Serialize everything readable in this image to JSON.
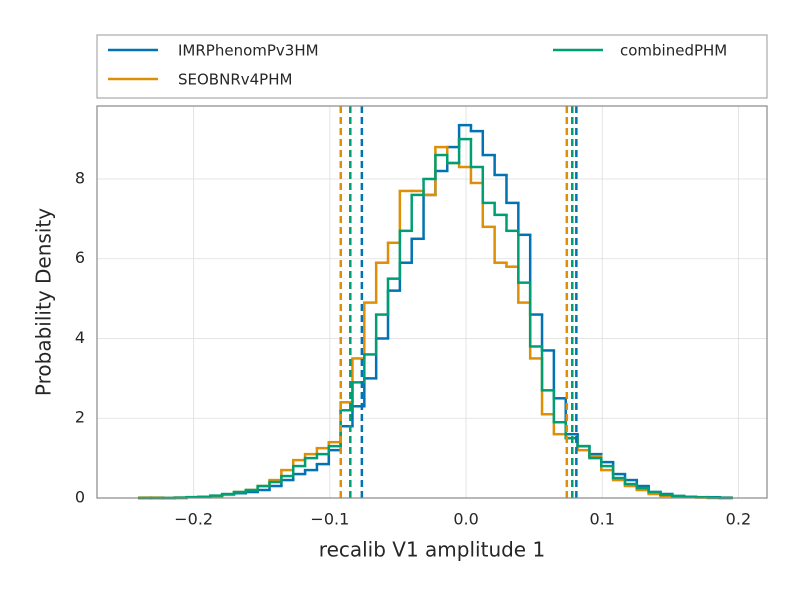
{
  "chart_data": {
    "type": "step-histogram",
    "xlabel": "recalib V1 amplitude 1",
    "ylabel": "Probability Density",
    "xlim": [
      -0.271,
      0.221
    ],
    "ylim": [
      0,
      9.83
    ],
    "xticks": [
      {
        "value": -0.2,
        "label": "−0.2"
      },
      {
        "value": -0.1,
        "label": "−0.1"
      },
      {
        "value": 0,
        "label": "0.0"
      },
      {
        "value": 0.1,
        "label": "0.1"
      },
      {
        "value": 0.2,
        "label": "0.2"
      }
    ],
    "yticks": [
      0,
      2,
      4,
      6,
      8
    ],
    "grid": true,
    "bins": [
      -0.24,
      -0.2313,
      -0.2226,
      -0.2139,
      -0.2052,
      -0.1965,
      -0.1878,
      -0.1791,
      -0.1704,
      -0.1617,
      -0.153,
      -0.1443,
      -0.1356,
      -0.1269,
      -0.1182,
      -0.1095,
      -0.1008,
      -0.0921,
      -0.0834,
      -0.0747,
      -0.066,
      -0.0573,
      -0.0486,
      -0.0399,
      -0.0312,
      -0.0225,
      -0.0138,
      -0.0051,
      0.0036,
      0.0123,
      0.021,
      0.0297,
      0.0384,
      0.0471,
      0.0558,
      0.0645,
      0.0732,
      0.0819,
      0.0906,
      0.0993,
      0.108,
      0.1167,
      0.1254,
      0.1341,
      0.1428,
      0.1515,
      0.1602,
      0.1689,
      0.1776,
      0.1863,
      0.195
    ],
    "series": [
      {
        "name": "IMRPhenomPv3HM",
        "color": "#0173b2",
        "quantiles": [
          -0.0765,
          0.081
        ],
        "values": [
          0,
          0,
          0,
          0,
          0.02,
          0.03,
          0.05,
          0.08,
          0.12,
          0.15,
          0.2,
          0.3,
          0.45,
          0.6,
          0.7,
          0.85,
          1.2,
          1.8,
          2.3,
          3.0,
          4.0,
          5.2,
          5.9,
          6.5,
          7.6,
          8.2,
          8.8,
          9.35,
          9.2,
          8.6,
          8.1,
          7.4,
          6.6,
          4.6,
          3.7,
          2.5,
          1.6,
          1.3,
          1.1,
          0.9,
          0.6,
          0.45,
          0.3,
          0.15,
          0.1,
          0.05,
          0.03,
          0.02,
          0.02,
          0.01
        ]
      },
      {
        "name": "SEOBNRv4PHM",
        "color": "#de8f05",
        "quantiles": [
          -0.092,
          0.074
        ],
        "values": [
          0.01,
          0.01,
          0,
          0.01,
          0.02,
          0.03,
          0.05,
          0.08,
          0.15,
          0.2,
          0.3,
          0.45,
          0.7,
          0.95,
          1.1,
          1.25,
          1.4,
          2.4,
          3.5,
          4.9,
          5.9,
          6.4,
          7.7,
          7.7,
          7.6,
          8.8,
          8.4,
          8.3,
          7.9,
          6.8,
          5.9,
          5.8,
          4.9,
          3.5,
          2.1,
          1.6,
          1.5,
          1.2,
          1.05,
          0.7,
          0.45,
          0.3,
          0.2,
          0.1,
          0.05,
          0.03,
          0.02,
          0.01,
          0,
          0
        ]
      },
      {
        "name": "combinedPHM",
        "color": "#029e73",
        "quantiles": [
          -0.085,
          0.078
        ],
        "values": [
          0,
          0,
          0,
          0.01,
          0.02,
          0.03,
          0.06,
          0.1,
          0.15,
          0.2,
          0.3,
          0.4,
          0.55,
          0.8,
          1.0,
          1.1,
          1.3,
          2.2,
          2.9,
          3.6,
          4.6,
          5.5,
          6.7,
          7.6,
          8.0,
          8.6,
          8.4,
          9.0,
          8.3,
          7.4,
          7.1,
          6.7,
          5.4,
          3.8,
          2.7,
          1.9,
          1.5,
          1.3,
          1.0,
          0.8,
          0.5,
          0.35,
          0.25,
          0.15,
          0.08,
          0.05,
          0.03,
          0.02,
          0.01,
          0
        ]
      }
    ]
  }
}
